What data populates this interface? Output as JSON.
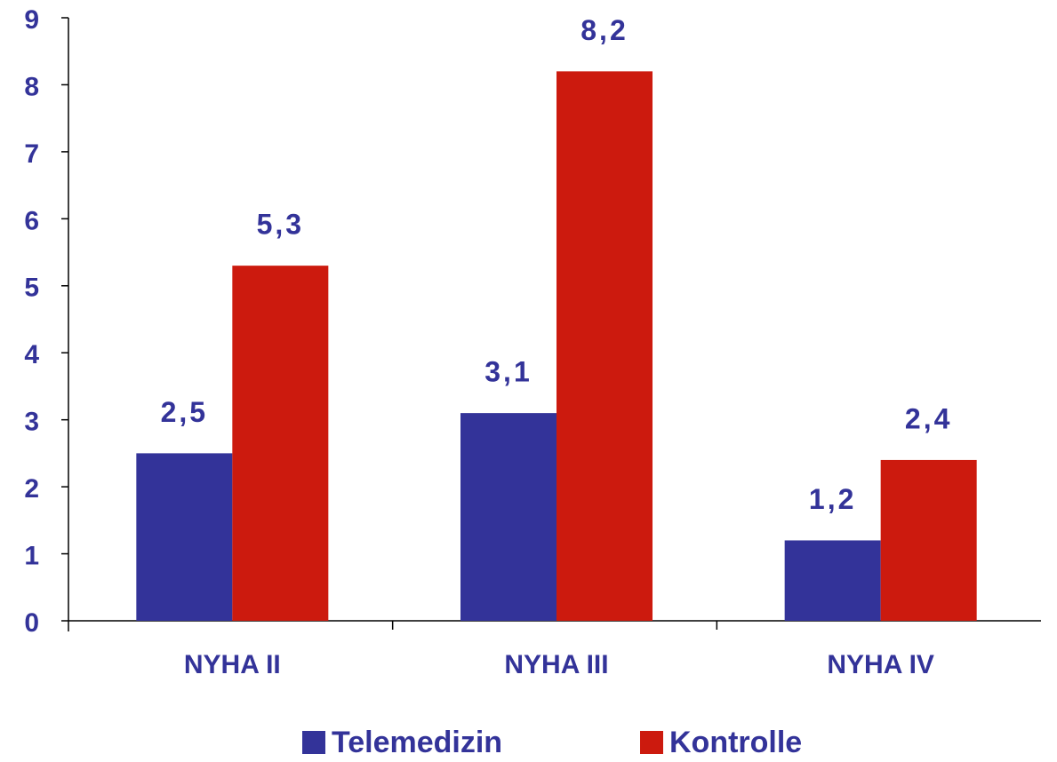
{
  "chart_data": {
    "type": "bar",
    "categories": [
      "NYHA II",
      "NYHA III",
      "NYHA IV"
    ],
    "series": [
      {
        "name": "Telemedizin",
        "color": "#333399",
        "values": [
          2.5,
          3.1,
          1.2
        ],
        "value_labels": [
          "2,5",
          "3,1",
          "1,2"
        ]
      },
      {
        "name": "Kontrolle",
        "color": "#cc1a0e",
        "values": [
          5.3,
          8.2,
          2.4
        ],
        "value_labels": [
          "5,3",
          "8,2",
          "2,4"
        ]
      }
    ],
    "ylim": [
      0,
      9
    ],
    "yticks": [
      0,
      1,
      2,
      3,
      4,
      5,
      6,
      7,
      8,
      9
    ],
    "grid": false,
    "legend": "bottom"
  }
}
